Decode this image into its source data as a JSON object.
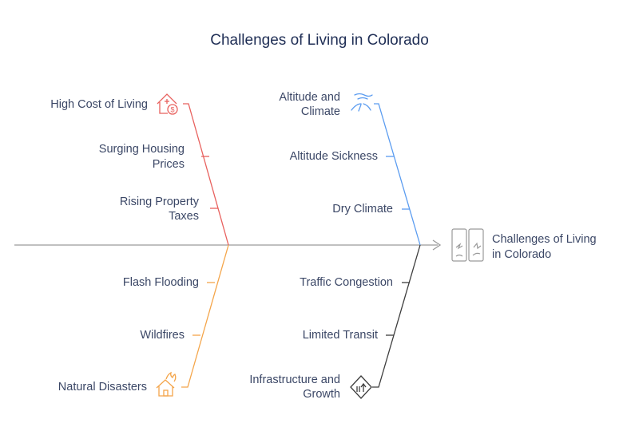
{
  "title": "Challenges of Living in Colorado",
  "effect": {
    "line1": "Challenges of Living",
    "line2": "in Colorado"
  },
  "categories": {
    "cost": {
      "head": "High Cost of Living",
      "items": [
        "Surging Housing",
        "Prices",
        "Rising Property",
        "Taxes"
      ],
      "color": "#e8615e",
      "icon": "house-dollar-icon"
    },
    "altitude": {
      "head_line1": "Altitude and",
      "head_line2": "Climate",
      "items": [
        "Altitude Sickness",
        "Dry Climate"
      ],
      "color": "#5b9cf0",
      "icon": "wind-icon"
    },
    "disasters": {
      "head": "Natural Disasters",
      "items": [
        "Flash Flooding",
        "Wildfires"
      ],
      "color": "#f4a54a",
      "icon": "house-fire-icon"
    },
    "infrastructure": {
      "head_line1": "Infrastructure and",
      "head_line2": "Growth",
      "items": [
        "Traffic Congestion",
        "Limited Transit"
      ],
      "color": "#3d3d3d",
      "icon": "road-sign-icon"
    }
  },
  "spine_color": "#9a9a9a"
}
